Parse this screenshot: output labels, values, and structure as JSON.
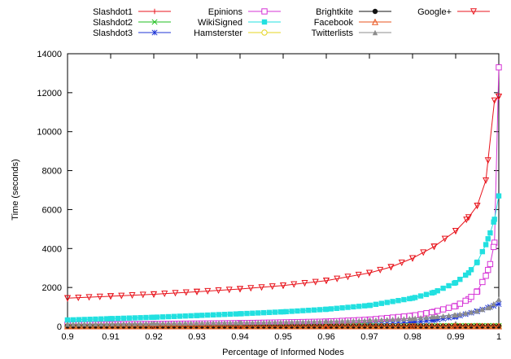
{
  "chart_data": {
    "type": "line",
    "title": "",
    "xlabel": "Percentage of Informed Nodes",
    "ylabel": "Time (seconds)",
    "xlim": [
      0.9,
      1.0
    ],
    "ylim": [
      0,
      14000
    ],
    "x_ticks": [
      "0.9",
      "0.91",
      "0.92",
      "0.93",
      "0.94",
      "0.95",
      "0.96",
      "0.97",
      "0.98",
      "0.99",
      "1"
    ],
    "y_ticks": [
      "0",
      "2000",
      "4000",
      "6000",
      "8000",
      "10000",
      "12000",
      "14000"
    ],
    "grid": false,
    "legend_position": "top, outside plot area, four columns",
    "series": [
      {
        "name": "Slashdot1",
        "color": "#e8141c",
        "marker": "plus",
        "x": [
          0.9,
          0.92,
          0.94,
          0.96,
          0.98,
          0.99,
          0.995,
          1.0
        ],
        "y": [
          40,
          40,
          40,
          40,
          40,
          40,
          40,
          40
        ]
      },
      {
        "name": "Slashdot2",
        "color": "#1fbf1f",
        "marker": "cross",
        "x": [
          0.9,
          0.92,
          0.94,
          0.96,
          0.98,
          0.99,
          0.995,
          1.0
        ],
        "y": [
          35,
          35,
          35,
          35,
          35,
          35,
          35,
          35
        ]
      },
      {
        "name": "Slashdot3",
        "color": "#1f36d6",
        "marker": "star",
        "x": [
          0.9,
          0.92,
          0.94,
          0.96,
          0.97,
          0.98,
          0.985,
          0.99,
          0.995,
          0.998,
          1.0
        ],
        "y": [
          60,
          65,
          70,
          80,
          100,
          200,
          330,
          500,
          780,
          1000,
          1150
        ]
      },
      {
        "name": "Epinions",
        "color": "#d633d6",
        "marker": "square-open",
        "x": [
          0.9,
          0.92,
          0.94,
          0.96,
          0.97,
          0.98,
          0.985,
          0.99,
          0.993,
          0.995,
          0.997,
          0.998,
          0.999,
          1.0
        ],
        "y": [
          100,
          130,
          170,
          250,
          350,
          550,
          750,
          1050,
          1400,
          1800,
          2600,
          3200,
          4300,
          13300
        ]
      },
      {
        "name": "WikiSigned",
        "color": "#22e0e0",
        "marker": "square-filled",
        "x": [
          0.9,
          0.91,
          0.92,
          0.93,
          0.94,
          0.95,
          0.96,
          0.97,
          0.98,
          0.985,
          0.99,
          0.993,
          0.995,
          0.997,
          0.998,
          0.999,
          1.0
        ],
        "y": [
          330,
          400,
          470,
          560,
          650,
          750,
          880,
          1080,
          1450,
          1750,
          2250,
          2750,
          3300,
          4200,
          4800,
          5500,
          6700
        ]
      },
      {
        "name": "Hamsterster",
        "color": "#e6d422",
        "marker": "circle-open",
        "x": [
          0.9,
          0.92,
          0.94,
          0.96,
          0.98,
          0.99,
          0.995,
          1.0
        ],
        "y": [
          15,
          15,
          15,
          15,
          15,
          15,
          15,
          15
        ]
      },
      {
        "name": "Brightkite",
        "color": "#111111",
        "marker": "circle-filled",
        "x": [
          0.9,
          0.92,
          0.94,
          0.96,
          0.98,
          0.99,
          0.995,
          1.0
        ],
        "y": [
          20,
          20,
          20,
          20,
          20,
          20,
          20,
          20
        ]
      },
      {
        "name": "Facebook",
        "color": "#e8531c",
        "marker": "triangle-up",
        "x": [
          0.9,
          0.92,
          0.94,
          0.96,
          0.98,
          0.99,
          0.995,
          1.0
        ],
        "y": [
          10,
          10,
          10,
          10,
          10,
          10,
          10,
          10
        ]
      },
      {
        "name": "Twitterlists",
        "color": "#8c8c8c",
        "marker": "triangle-filled",
        "x": [
          0.9,
          0.92,
          0.94,
          0.96,
          0.97,
          0.98,
          0.985,
          0.99,
          0.995,
          0.998,
          1.0
        ],
        "y": [
          120,
          160,
          200,
          260,
          320,
          420,
          500,
          600,
          800,
          1000,
          1400
        ]
      },
      {
        "name": "Google+",
        "color": "#e8141c",
        "marker": "triangle-down",
        "x": [
          0.9,
          0.91,
          0.92,
          0.93,
          0.94,
          0.95,
          0.96,
          0.97,
          0.975,
          0.98,
          0.985,
          0.99,
          0.993,
          0.995,
          0.997,
          0.999,
          1.0
        ],
        "y": [
          1450,
          1550,
          1650,
          1780,
          1920,
          2100,
          2350,
          2750,
          3050,
          3500,
          4100,
          4900,
          5600,
          6200,
          7500,
          11600,
          11800
        ]
      }
    ]
  }
}
